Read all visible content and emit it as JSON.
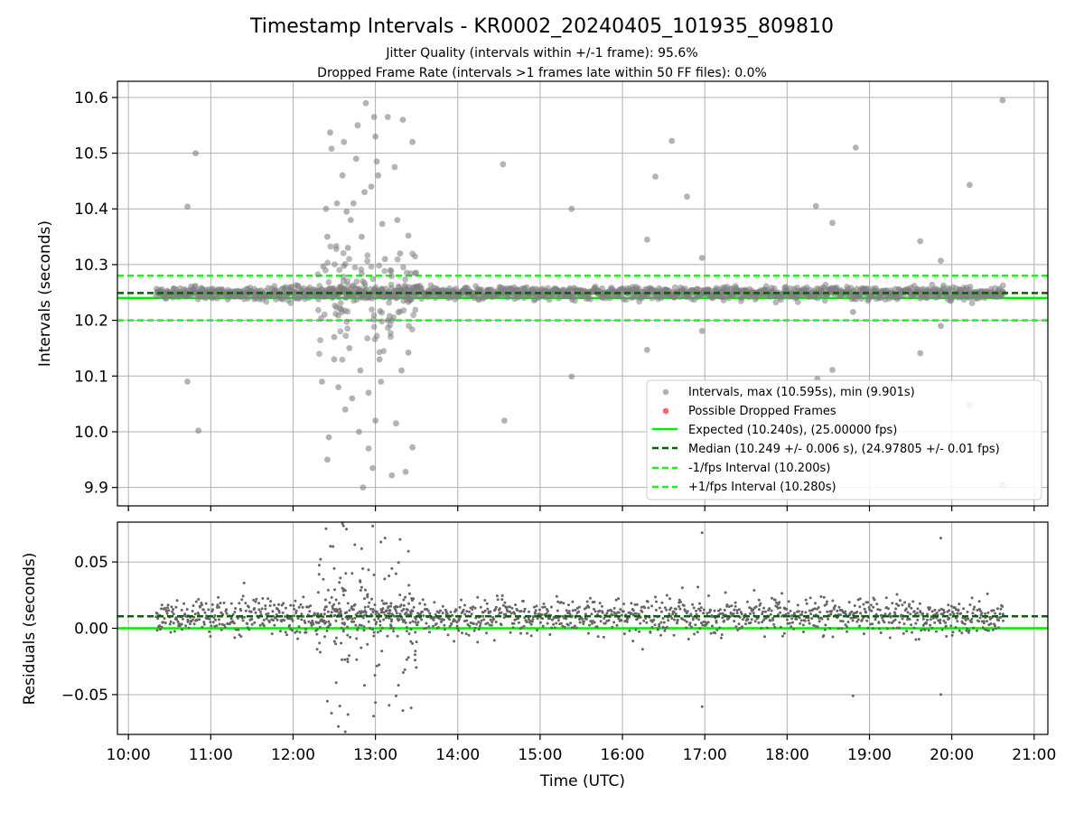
{
  "title": "Timestamp Intervals - KR0002_20240405_101935_809810",
  "subtitle_1": "Jitter Quality (intervals within +/-1 frame): 95.6%",
  "subtitle_2": "Dropped Frame Rate (intervals >1 frames late within 50 FF files): 0.0%",
  "colors": {
    "points": "#808080",
    "dropped": "#ff0000",
    "expected": "#00ee00",
    "median": "#006400",
    "bounds": "#22ee22"
  },
  "chart_data": [
    {
      "type": "scatter",
      "panel": "top",
      "ylabel": "Intervals (seconds)",
      "xlim": [
        "09:52",
        "21:10"
      ],
      "ylim": [
        9.867,
        10.629
      ],
      "y_ticks": [
        9.9,
        10.0,
        10.1,
        10.2,
        10.3,
        10.4,
        10.5,
        10.6
      ],
      "y_tick_labels": [
        "9.9",
        "10.0",
        "10.1",
        "10.2",
        "10.3",
        "10.4",
        "10.5",
        "10.6"
      ],
      "grid": true,
      "legend_position": "lower right",
      "series": [
        {
          "name": "Intervals, max (10.595s), min (9.901s)",
          "kind": "points",
          "color": "#808080",
          "dense_band": {
            "x_range": [
              "10:20",
              "20:38"
            ],
            "center": 10.249,
            "spread": 0.006
          }
        },
        {
          "name": "Possible Dropped Frames",
          "kind": "points",
          "color": "#ff0000",
          "values": []
        },
        {
          "name": "Expected (10.240s), (25.00000 fps)",
          "kind": "hline",
          "y": 10.24,
          "style": "solid",
          "color": "#00ee00"
        },
        {
          "name": "Median (10.249 +/- 0.006 s), (24.97805 +/- 0.01 fps)",
          "kind": "hline",
          "y": 10.249,
          "style": "dashed",
          "color": "#006400"
        },
        {
          "name": "-1/fps Interval (10.200s)",
          "kind": "hline",
          "y": 10.2,
          "style": "dashed",
          "color": "#22ee22"
        },
        {
          "name": "+1/fps Interval (10.280s)",
          "kind": "hline",
          "y": 10.28,
          "style": "dashed",
          "color": "#22ee22"
        }
      ],
      "outliers": [
        [
          "10:43",
          10.404
        ],
        [
          "10:49",
          10.5
        ],
        [
          "10:43",
          10.09
        ],
        [
          "10:51",
          10.002
        ],
        [
          "12:22",
          10.297
        ],
        [
          "12:24",
          10.4
        ],
        [
          "12:25",
          10.35
        ],
        [
          "12:27",
          10.537
        ],
        [
          "12:28",
          10.508
        ],
        [
          "12:30",
          10.13
        ],
        [
          "12:32",
          10.41
        ],
        [
          "12:34",
          10.26
        ],
        [
          "12:36",
          10.46
        ],
        [
          "12:37",
          10.52
        ],
        [
          "12:39",
          10.395
        ],
        [
          "12:40",
          10.33
        ],
        [
          "12:42",
          10.38
        ],
        [
          "12:43",
          10.06
        ],
        [
          "12:44",
          10.41
        ],
        [
          "12:46",
          10.49
        ],
        [
          "12:47",
          10.55
        ],
        [
          "12:49",
          10.11
        ],
        [
          "12:50",
          10.35
        ],
        [
          "12:52",
          10.43
        ],
        [
          "12:53",
          10.59
        ],
        [
          "12:55",
          10.07
        ],
        [
          "12:57",
          10.44
        ],
        [
          "12:59",
          10.565
        ],
        [
          "13:00",
          10.53
        ],
        [
          "13:01",
          10.485
        ],
        [
          "13:02",
          10.46
        ],
        [
          "13:03",
          10.13
        ],
        [
          "13:05",
          10.373
        ],
        [
          "13:07",
          10.31
        ],
        [
          "13:09",
          10.565
        ],
        [
          "13:11",
          10.29
        ],
        [
          "13:12",
          10.2
        ],
        [
          "13:14",
          10.475
        ],
        [
          "13:16",
          10.38
        ],
        [
          "13:18",
          10.32
        ],
        [
          "13:20",
          10.56
        ],
        [
          "13:24",
          10.352
        ],
        [
          "13:27",
          10.52
        ],
        [
          "12:21",
          10.09
        ],
        [
          "12:25",
          9.95
        ],
        [
          "12:26",
          9.99
        ],
        [
          "12:30",
          10.17
        ],
        [
          "12:33",
          10.08
        ],
        [
          "12:38",
          10.04
        ],
        [
          "12:41",
          10.15
        ],
        [
          "12:48",
          10.0
        ],
        [
          "12:51",
          9.9
        ],
        [
          "12:55",
          9.97
        ],
        [
          "12:58",
          9.935
        ],
        [
          "13:00",
          10.02
        ],
        [
          "13:04",
          10.09
        ],
        [
          "13:09",
          10.2
        ],
        [
          "13:12",
          9.922
        ],
        [
          "13:15",
          10.015
        ],
        [
          "13:19",
          10.11
        ],
        [
          "13:22",
          9.928
        ],
        [
          "13:27",
          9.972
        ],
        [
          "13:24",
          10.142
        ],
        [
          "14:33",
          10.48
        ],
        [
          "14:34",
          10.02
        ],
        [
          "15:23",
          10.4
        ],
        [
          "15:23",
          10.099
        ],
        [
          "16:18",
          10.345
        ],
        [
          "16:18",
          10.147
        ],
        [
          "16:24",
          10.458
        ],
        [
          "16:36",
          10.522
        ],
        [
          "16:47",
          10.422
        ],
        [
          "16:58",
          10.312
        ],
        [
          "16:58",
          10.181
        ],
        [
          "18:21",
          10.405
        ],
        [
          "18:22",
          10.095
        ],
        [
          "18:33",
          10.375
        ],
        [
          "18:33",
          10.111
        ],
        [
          "18:50",
          10.51
        ],
        [
          "18:48",
          10.215
        ],
        [
          "19:37",
          10.342
        ],
        [
          "19:37",
          10.141
        ],
        [
          "19:52",
          10.307
        ],
        [
          "19:52",
          10.19
        ],
        [
          "20:13",
          10.443
        ],
        [
          "20:13",
          10.048
        ],
        [
          "20:37",
          10.595
        ],
        [
          "20:37",
          9.905
        ]
      ]
    },
    {
      "type": "scatter",
      "panel": "bottom",
      "xlabel": "Time (UTC)",
      "ylabel": "Residuals (seconds)",
      "xlim": [
        "09:52",
        "21:10"
      ],
      "ylim": [
        -0.08,
        0.08
      ],
      "x_ticks": [
        "10:00",
        "11:00",
        "12:00",
        "13:00",
        "14:00",
        "15:00",
        "16:00",
        "17:00",
        "18:00",
        "19:00",
        "20:00",
        "21:00"
      ],
      "y_ticks": [
        -0.05,
        0.0,
        0.05
      ],
      "y_tick_labels": [
        "−0.05",
        "0.00",
        "0.05"
      ],
      "grid": true,
      "series": [
        {
          "kind": "points",
          "color": "#808080",
          "dense_band": {
            "x_range": [
              "10:20",
              "20:38"
            ],
            "center": 0.009,
            "spread": 0.006
          }
        },
        {
          "kind": "hline",
          "y": 0.0,
          "style": "solid",
          "color": "#00ee00"
        },
        {
          "kind": "hline",
          "y": 0.009,
          "style": "dashed",
          "color": "#006400"
        }
      ],
      "outliers": [
        [
          "12:20",
          0.052
        ],
        [
          "12:22",
          0.037
        ],
        [
          "12:24",
          0.075
        ],
        [
          "12:25",
          -0.055
        ],
        [
          "12:28",
          -0.064
        ],
        [
          "12:30",
          0.045
        ],
        [
          "12:33",
          -0.074
        ],
        [
          "12:36",
          0.079
        ],
        [
          "12:38",
          -0.078
        ],
        [
          "12:40",
          -0.065
        ],
        [
          "12:45",
          0.063
        ],
        [
          "12:50",
          0.06
        ],
        [
          "12:52",
          -0.043
        ],
        [
          "12:55",
          0.044
        ],
        [
          "12:58",
          0.077
        ],
        [
          "13:00",
          -0.056
        ],
        [
          "13:04",
          0.065
        ],
        [
          "13:07",
          0.068
        ],
        [
          "13:10",
          -0.058
        ],
        [
          "13:12",
          0.045
        ],
        [
          "13:15",
          -0.051
        ],
        [
          "13:18",
          0.067
        ],
        [
          "13:20",
          -0.062
        ],
        [
          "13:24",
          0.058
        ],
        [
          "13:26",
          -0.06
        ],
        [
          "16:58",
          0.072
        ],
        [
          "16:58",
          -0.059
        ],
        [
          "18:48",
          -0.051
        ],
        [
          "19:52",
          0.068
        ],
        [
          "19:52",
          -0.05
        ]
      ]
    }
  ],
  "legend": [
    "Intervals, max (10.595s), min (9.901s)",
    "Possible Dropped Frames",
    "Expected (10.240s), (25.00000 fps)",
    "Median (10.249 +/- 0.006 s), (24.97805 +/- 0.01 fps)",
    "-1/fps Interval (10.200s)",
    "+1/fps Interval (10.280s)"
  ]
}
